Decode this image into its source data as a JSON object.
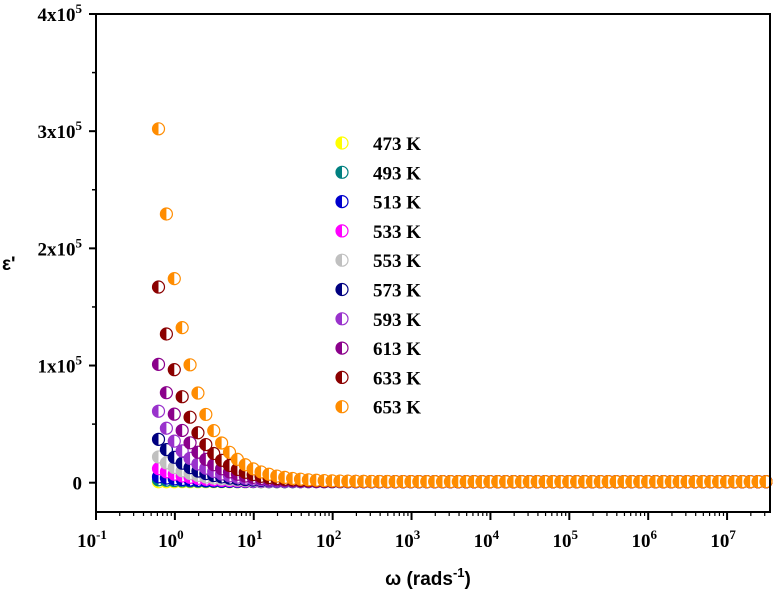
{
  "chart_data": {
    "type": "scatter",
    "title": "",
    "xlabel": {
      "base": "ω (rads",
      "sup": "-1",
      "close": ")"
    },
    "ylabel": "ε'",
    "xscale": "log",
    "xlim": [
      0.1,
      35000000
    ],
    "ylim": [
      -25000,
      400000
    ],
    "x_ticks": [
      {
        "value": 0.1,
        "base": "10",
        "exp": "-1"
      },
      {
        "value": 1,
        "base": "10",
        "exp": "0"
      },
      {
        "value": 10,
        "base": "10",
        "exp": "1"
      },
      {
        "value": 100,
        "base": "10",
        "exp": "2"
      },
      {
        "value": 1000,
        "base": "10",
        "exp": "3"
      },
      {
        "value": 10000,
        "base": "10",
        "exp": "4"
      },
      {
        "value": 100000,
        "base": "10",
        "exp": "5"
      },
      {
        "value": 1000000,
        "base": "10",
        "exp": "6"
      },
      {
        "value": 10000000,
        "base": "10",
        "exp": "7"
      }
    ],
    "y_ticks": [
      {
        "value": 0,
        "base": "0",
        "exp": ""
      },
      {
        "value": 100000,
        "base": "1x10",
        "exp": "5"
      },
      {
        "value": 200000,
        "base": "2x10",
        "exp": "5"
      },
      {
        "value": 300000,
        "base": "3x10",
        "exp": "5"
      },
      {
        "value": 400000,
        "base": "4x10",
        "exp": "5"
      }
    ],
    "legend_position": "upper-center",
    "series": [
      {
        "name": "473 K",
        "color": "#ffff00",
        "eps_at_first": 800
      },
      {
        "name": "493 K",
        "color": "#008080",
        "eps_at_first": 2500
      },
      {
        "name": "513 K",
        "color": "#0000cd",
        "eps_at_first": 5000
      },
      {
        "name": "533 K",
        "color": "#ff00ff",
        "eps_at_first": 12000
      },
      {
        "name": "553 K",
        "color": "#c0c0c0",
        "eps_at_first": 22000
      },
      {
        "name": "573 K",
        "color": "#000080",
        "eps_at_first": 37000
      },
      {
        "name": "593 K",
        "color": "#9932cc",
        "eps_at_first": 61000
      },
      {
        "name": "613 K",
        "color": "#8b008b",
        "eps_at_first": 101000
      },
      {
        "name": "633 K",
        "color": "#8b0000",
        "eps_at_first": 167000
      },
      {
        "name": "653 K",
        "color": "#ff8c00",
        "eps_at_first": 302000
      }
    ],
    "x_start": 0.62,
    "x_end": 35000000,
    "points_per_decade": 10,
    "decay_exponent": 1.2,
    "high_freq_floor": 900
  }
}
